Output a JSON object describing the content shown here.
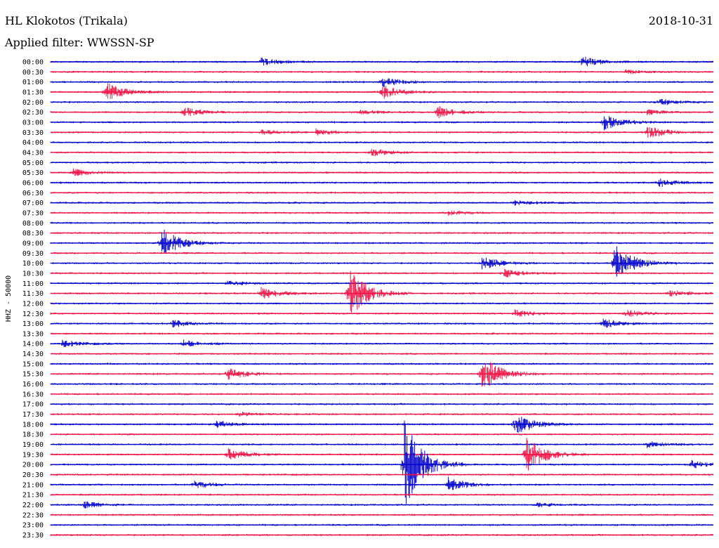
{
  "header": {
    "station": "HL Klokotos (Trikala)",
    "filter": "Applied filter: WWSSN-SP",
    "date": "2018-10-31"
  },
  "chart_data": {
    "type": "line",
    "title": "HL Klokotos (Trikala)",
    "subtitle": "Applied filter: WWSSN-SP",
    "ylabel": "HHZ - 50000",
    "colors": [
      "#0000cc",
      "#ee1144"
    ],
    "row_labels": [
      "00:00",
      "00:30",
      "01:00",
      "01:30",
      "02:00",
      "02:30",
      "03:00",
      "03:30",
      "04:00",
      "04:30",
      "05:00",
      "05:30",
      "06:00",
      "06:30",
      "07:00",
      "07:30",
      "08:00",
      "08:30",
      "09:00",
      "09:30",
      "10:00",
      "10:30",
      "11:00",
      "11:30",
      "12:00",
      "12:30",
      "13:00",
      "13:30",
      "14:00",
      "14:30",
      "15:00",
      "15:30",
      "16:00",
      "16:30",
      "17:00",
      "17:30",
      "18:00",
      "18:30",
      "19:00",
      "19:30",
      "20:00",
      "20:30",
      "21:00",
      "21:30",
      "22:00",
      "22:30",
      "23:00",
      "23:30"
    ],
    "row_minutes": 30,
    "events": [
      {
        "row": "00:00",
        "minute": 9.5,
        "amplitude": 6
      },
      {
        "row": "00:00",
        "minute": 24.0,
        "amplitude": 8
      },
      {
        "row": "00:30",
        "minute": 26.0,
        "amplitude": 3
      },
      {
        "row": "01:00",
        "minute": 15.0,
        "amplitude": 7
      },
      {
        "row": "01:30",
        "minute": 2.5,
        "amplitude": 14
      },
      {
        "row": "01:30",
        "minute": 15.0,
        "amplitude": 10
      },
      {
        "row": "02:00",
        "minute": 27.5,
        "amplitude": 5
      },
      {
        "row": "02:30",
        "minute": 6.0,
        "amplitude": 7
      },
      {
        "row": "02:30",
        "minute": 14.0,
        "amplitude": 3
      },
      {
        "row": "02:30",
        "minute": 17.5,
        "amplitude": 9
      },
      {
        "row": "02:30",
        "minute": 27.0,
        "amplitude": 3
      },
      {
        "row": "03:00",
        "minute": 25.0,
        "amplitude": 12
      },
      {
        "row": "03:30",
        "minute": 9.5,
        "amplitude": 4
      },
      {
        "row": "03:30",
        "minute": 12.0,
        "amplitude": 4
      },
      {
        "row": "03:30",
        "minute": 27.0,
        "amplitude": 9
      },
      {
        "row": "04:30",
        "minute": 14.5,
        "amplitude": 6
      },
      {
        "row": "05:30",
        "minute": 1.0,
        "amplitude": 5
      },
      {
        "row": "06:00",
        "minute": 27.5,
        "amplitude": 6
      },
      {
        "row": "07:00",
        "minute": 21.0,
        "amplitude": 3
      },
      {
        "row": "07:30",
        "minute": 18.0,
        "amplitude": 3
      },
      {
        "row": "09:00",
        "minute": 5.0,
        "amplitude": 24
      },
      {
        "row": "10:00",
        "minute": 19.5,
        "amplitude": 10
      },
      {
        "row": "10:00",
        "minute": 25.5,
        "amplitude": 30
      },
      {
        "row": "10:30",
        "minute": 20.5,
        "amplitude": 6
      },
      {
        "row": "11:00",
        "minute": 8.0,
        "amplitude": 3
      },
      {
        "row": "11:30",
        "minute": 9.5,
        "amplitude": 9
      },
      {
        "row": "11:30",
        "minute": 13.5,
        "amplitude": 38
      },
      {
        "row": "11:30",
        "minute": 28.0,
        "amplitude": 5
      },
      {
        "row": "12:30",
        "minute": 21.0,
        "amplitude": 5
      },
      {
        "row": "12:30",
        "minute": 26.0,
        "amplitude": 5
      },
      {
        "row": "13:00",
        "minute": 5.5,
        "amplitude": 5
      },
      {
        "row": "13:00",
        "minute": 25.0,
        "amplitude": 7
      },
      {
        "row": "14:00",
        "minute": 0.5,
        "amplitude": 5
      },
      {
        "row": "14:00",
        "minute": 6.0,
        "amplitude": 5
      },
      {
        "row": "15:30",
        "minute": 8.0,
        "amplitude": 9
      },
      {
        "row": "15:30",
        "minute": 19.5,
        "amplitude": 28
      },
      {
        "row": "17:30",
        "minute": 8.5,
        "amplitude": 3
      },
      {
        "row": "18:00",
        "minute": 7.5,
        "amplitude": 5
      },
      {
        "row": "18:00",
        "minute": 21.0,
        "amplitude": 16
      },
      {
        "row": "19:00",
        "minute": 27.0,
        "amplitude": 4
      },
      {
        "row": "19:30",
        "minute": 8.0,
        "amplitude": 9
      },
      {
        "row": "19:30",
        "minute": 21.5,
        "amplitude": 30
      },
      {
        "row": "20:00",
        "minute": 16.0,
        "amplitude": 70
      },
      {
        "row": "20:00",
        "minute": 29.0,
        "amplitude": 5
      },
      {
        "row": "21:00",
        "minute": 6.5,
        "amplitude": 5
      },
      {
        "row": "21:00",
        "minute": 18.0,
        "amplitude": 10
      },
      {
        "row": "22:00",
        "minute": 1.5,
        "amplitude": 5
      },
      {
        "row": "22:00",
        "minute": 22.0,
        "amplitude": 3
      }
    ]
  }
}
